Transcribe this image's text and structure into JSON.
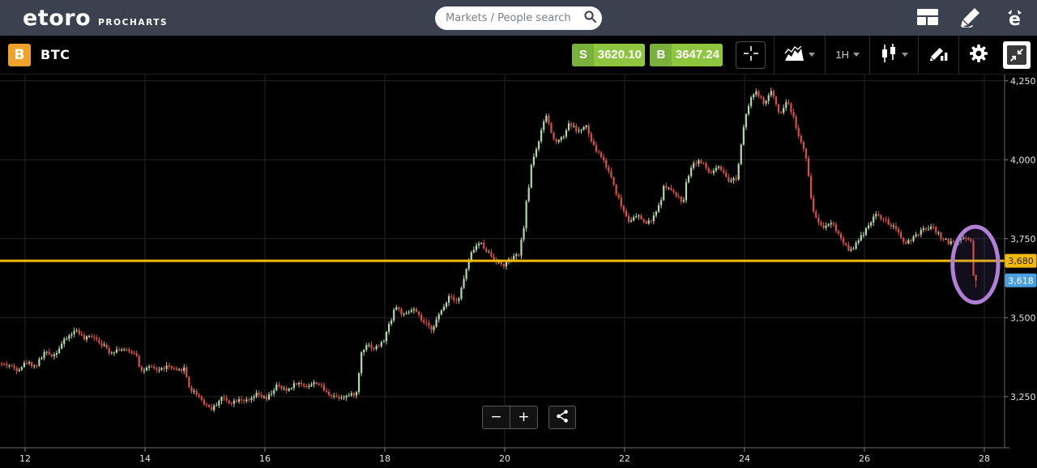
{
  "topnav": {
    "logo_text": "etoro",
    "logo_sub": "PROCHARTS",
    "search_placeholder": "Markets / People search",
    "icons": [
      "layout-icon",
      "pencil-icon",
      "etoro-badge-icon"
    ]
  },
  "toolbar": {
    "bitcoin_glyph": "B",
    "symbol": "BTC",
    "sell_label": "S",
    "sell_value": "3620.10",
    "buy_label": "B",
    "buy_value": "3647.24",
    "timeframe": "1H",
    "icons": [
      "crosshair-icon",
      "area-chart-icon",
      "candlestick-icon",
      "draw-icon",
      "gear-icon",
      "collapse-icon"
    ]
  },
  "controls": {
    "zoom_out_label": "−",
    "zoom_in_label": "+"
  },
  "colors": {
    "topnav_bg": "#3c4150",
    "buy_sell_green": "#8ec63f",
    "buy_sell_green_dark": "#79b13c",
    "bitcoin_orange": "#f0a32a",
    "grid": "#252525",
    "axis": "#6a6a6a",
    "tick_text": "#e3e3e3",
    "candle_up": "#b2d8ab",
    "candle_down": "#dc5143",
    "hline_yellow": "#f2b80c",
    "badge_blue": "#4aa0dc",
    "annotation_purple": "#b07fd6"
  },
  "chart_data": {
    "type": "candlestick",
    "instrument": "BTC",
    "interval": "1H",
    "x_domain_days": [
      11.581,
      28.338
    ],
    "y_domain_price": [
      3088,
      4270
    ],
    "x_ticks": [
      12,
      14,
      16,
      18,
      20,
      22,
      24,
      26,
      28
    ],
    "y_ticks": [
      3250,
      3500,
      3750,
      4000,
      4250
    ],
    "grid": true,
    "legend": "none",
    "hline": {
      "price": 3680,
      "label": "3,680",
      "color": "#f2b80c",
      "badge_text_color": "#2b2200"
    },
    "last_price": {
      "value": 3618,
      "label": "3,618",
      "badge_color": "#4aa0dc"
    },
    "annotation_ellipse": {
      "day": 27.85,
      "price": 3668,
      "rx_days": 0.38,
      "ry_price": 120,
      "color": "#b07fd6"
    },
    "candles": {
      "interval_days": 0.0416667,
      "t_start": 11.595,
      "t_end": 27.85,
      "seed": 42,
      "up": "#b2d8ab",
      "down": "#dc5143"
    },
    "keyframes": [
      [
        11.58,
        3355
      ],
      [
        11.75,
        3350
      ],
      [
        11.9,
        3335
      ],
      [
        12.05,
        3360
      ],
      [
        12.2,
        3345
      ],
      [
        12.35,
        3390
      ],
      [
        12.5,
        3380
      ],
      [
        12.65,
        3420
      ],
      [
        12.8,
        3450
      ],
      [
        12.9,
        3462
      ],
      [
        13.0,
        3430
      ],
      [
        13.15,
        3445
      ],
      [
        13.3,
        3418
      ],
      [
        13.45,
        3390
      ],
      [
        13.6,
        3402
      ],
      [
        13.75,
        3393
      ],
      [
        13.88,
        3388
      ],
      [
        13.96,
        3330
      ],
      [
        14.1,
        3342
      ],
      [
        14.25,
        3334
      ],
      [
        14.4,
        3346
      ],
      [
        14.55,
        3330
      ],
      [
        14.68,
        3340
      ],
      [
        14.78,
        3272
      ],
      [
        14.9,
        3258
      ],
      [
        15.02,
        3228
      ],
      [
        15.15,
        3210
      ],
      [
        15.3,
        3248
      ],
      [
        15.45,
        3230
      ],
      [
        15.6,
        3244
      ],
      [
        15.75,
        3234
      ],
      [
        15.9,
        3258
      ],
      [
        16.05,
        3240
      ],
      [
        16.22,
        3284
      ],
      [
        16.38,
        3268
      ],
      [
        16.55,
        3294
      ],
      [
        16.72,
        3283
      ],
      [
        16.9,
        3296
      ],
      [
        17.05,
        3262
      ],
      [
        17.25,
        3248
      ],
      [
        17.45,
        3254
      ],
      [
        17.56,
        3262
      ],
      [
        17.63,
        3388
      ],
      [
        17.72,
        3418
      ],
      [
        17.85,
        3402
      ],
      [
        18.0,
        3422
      ],
      [
        18.1,
        3478
      ],
      [
        18.2,
        3538
      ],
      [
        18.35,
        3505
      ],
      [
        18.5,
        3528
      ],
      [
        18.65,
        3488
      ],
      [
        18.8,
        3464
      ],
      [
        18.95,
        3512
      ],
      [
        19.1,
        3572
      ],
      [
        19.25,
        3552
      ],
      [
        19.38,
        3648
      ],
      [
        19.5,
        3718
      ],
      [
        19.62,
        3738
      ],
      [
        19.78,
        3700
      ],
      [
        19.9,
        3678
      ],
      [
        20.0,
        3664
      ],
      [
        20.12,
        3684
      ],
      [
        20.28,
        3702
      ],
      [
        20.38,
        3846
      ],
      [
        20.48,
        3998
      ],
      [
        20.6,
        4062
      ],
      [
        20.72,
        4140
      ],
      [
        20.85,
        4058
      ],
      [
        21.0,
        4072
      ],
      [
        21.1,
        4118
      ],
      [
        21.25,
        4088
      ],
      [
        21.38,
        4108
      ],
      [
        21.5,
        4042
      ],
      [
        21.65,
        4008
      ],
      [
        21.8,
        3948
      ],
      [
        21.95,
        3862
      ],
      [
        22.1,
        3808
      ],
      [
        22.25,
        3822
      ],
      [
        22.4,
        3796
      ],
      [
        22.55,
        3828
      ],
      [
        22.7,
        3922
      ],
      [
        22.85,
        3892
      ],
      [
        23.0,
        3866
      ],
      [
        23.12,
        3982
      ],
      [
        23.28,
        3998
      ],
      [
        23.45,
        3956
      ],
      [
        23.6,
        3976
      ],
      [
        23.75,
        3930
      ],
      [
        23.9,
        3944
      ],
      [
        24.02,
        4128
      ],
      [
        24.12,
        4196
      ],
      [
        24.22,
        4212
      ],
      [
        24.35,
        4178
      ],
      [
        24.48,
        4215
      ],
      [
        24.62,
        4148
      ],
      [
        24.75,
        4188
      ],
      [
        24.9,
        4098
      ],
      [
        25.05,
        4002
      ],
      [
        25.18,
        3832
      ],
      [
        25.32,
        3786
      ],
      [
        25.48,
        3804
      ],
      [
        25.62,
        3756
      ],
      [
        25.78,
        3712
      ],
      [
        25.92,
        3740
      ],
      [
        26.08,
        3792
      ],
      [
        26.22,
        3828
      ],
      [
        26.38,
        3806
      ],
      [
        26.55,
        3778
      ],
      [
        26.7,
        3736
      ],
      [
        26.85,
        3752
      ],
      [
        27.0,
        3778
      ],
      [
        27.15,
        3788
      ],
      [
        27.3,
        3756
      ],
      [
        27.45,
        3736
      ],
      [
        27.6,
        3746
      ],
      [
        27.72,
        3756
      ],
      [
        27.81,
        3742
      ],
      [
        27.85,
        3618
      ]
    ]
  }
}
